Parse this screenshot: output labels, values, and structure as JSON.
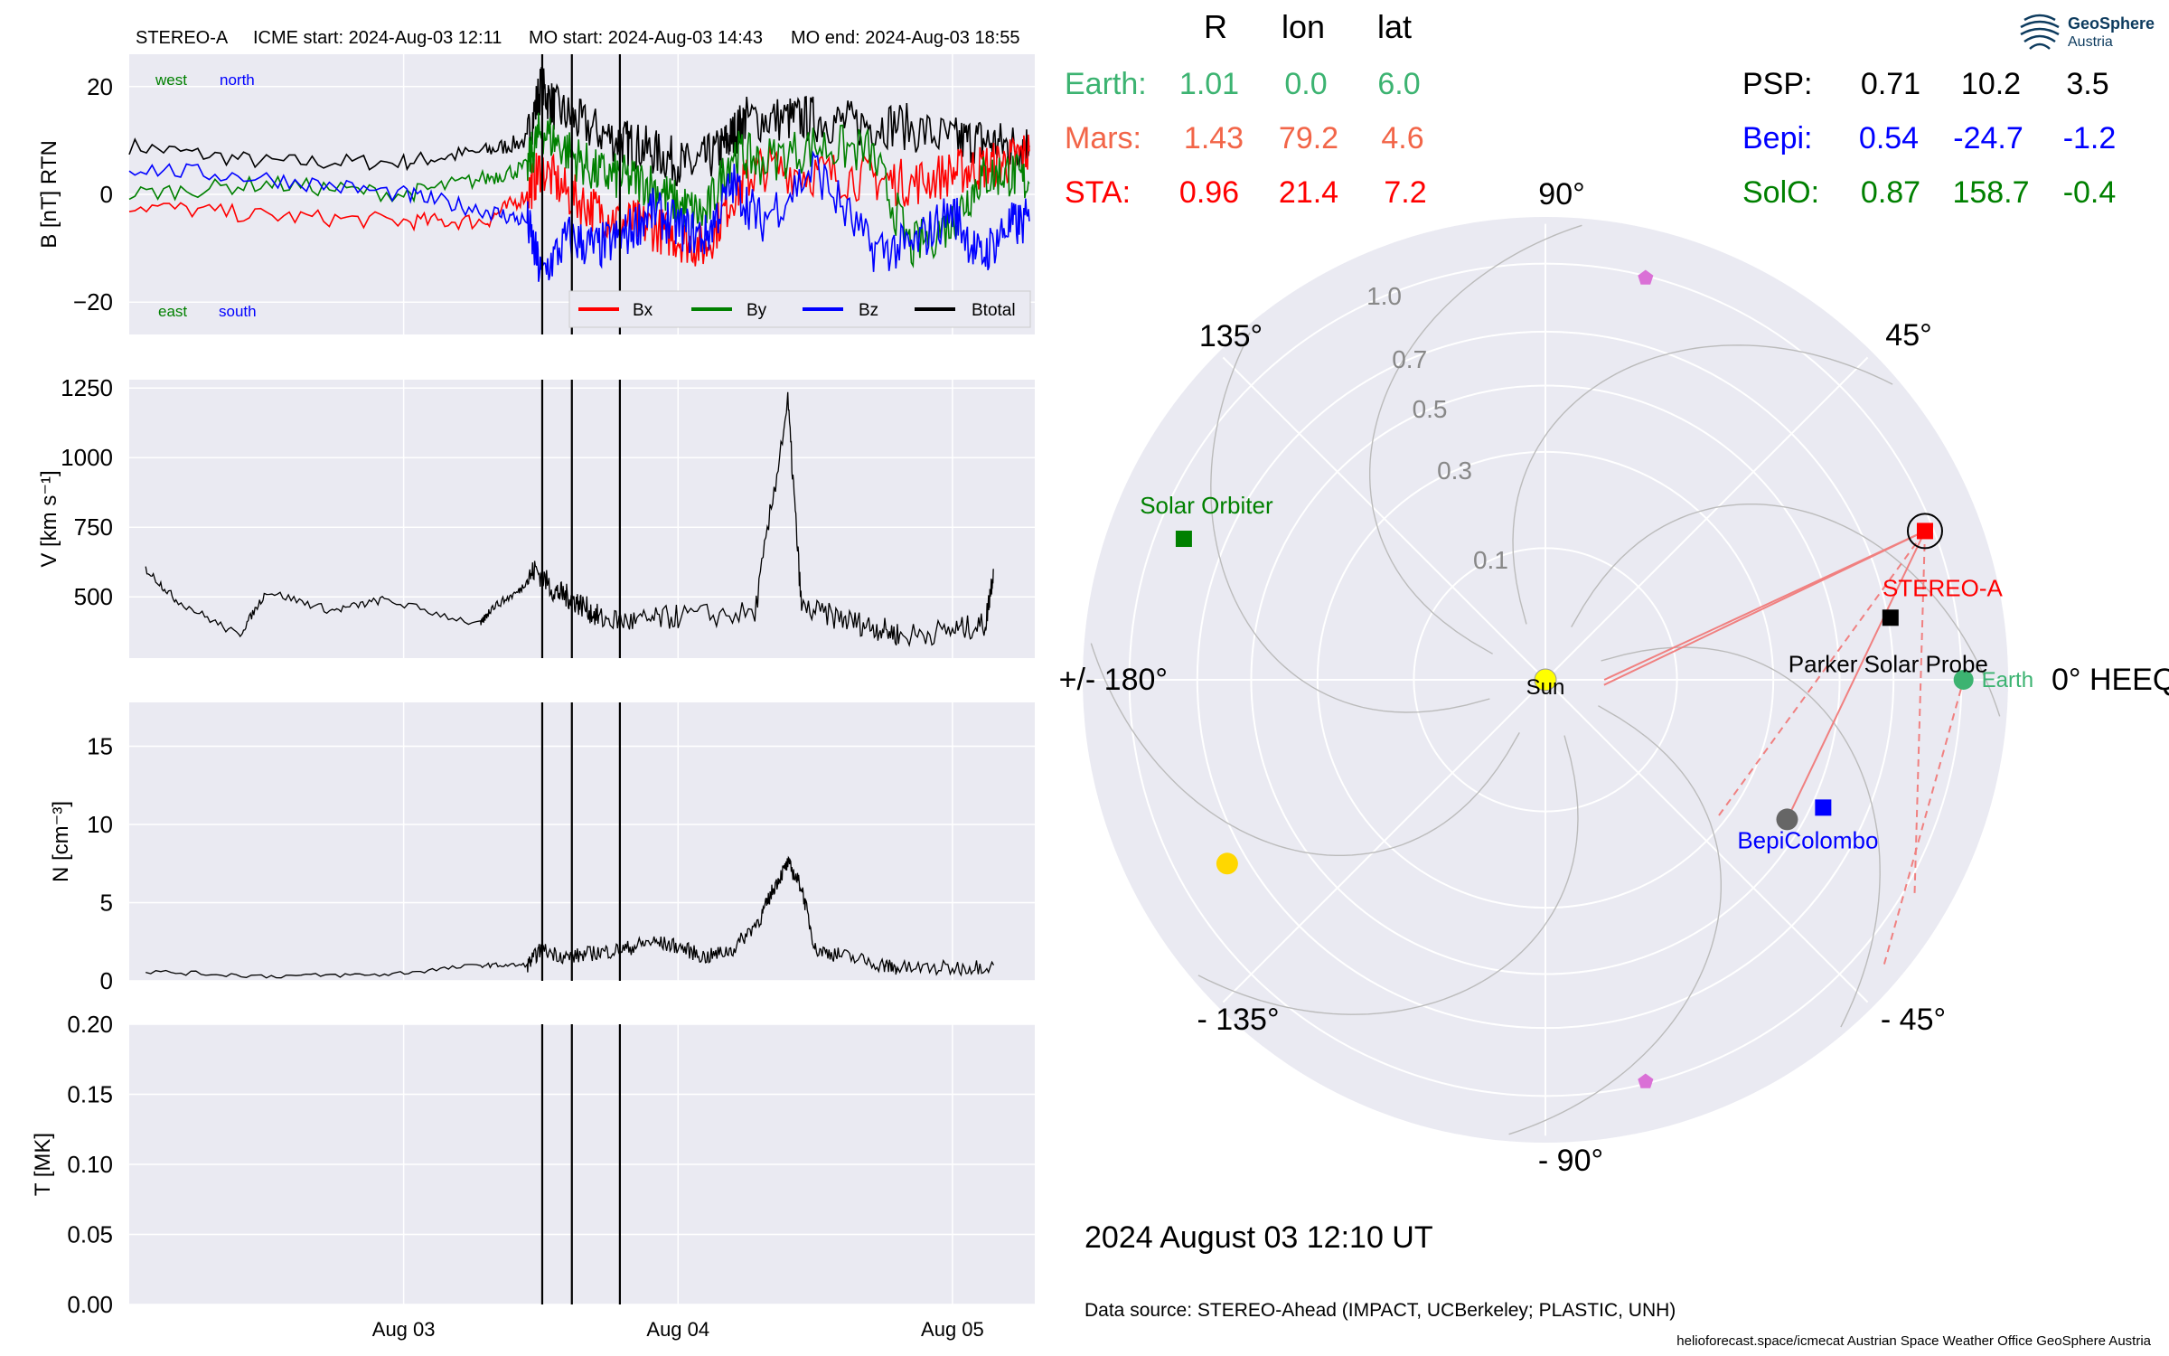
{
  "header": {
    "spacecraft": "STEREO-A",
    "icme_start": "ICME start: 2024-Aug-03 12:11",
    "mo_start": "MO start: 2024-Aug-03 14:43",
    "mo_end": "MO end: 2024-Aug-03 18:55"
  },
  "date_label": "2024 August 03  12:10 UT",
  "data_source": "Data source: STEREO-Ahead (IMPACT, UCBerkeley; PLASTIC, UNH)",
  "footer": "helioforecast.space/icmecat   Austrian Space Weather Office   GeoSphere Austria",
  "logo": {
    "name1": "GeoSphere",
    "name2": "Austria"
  },
  "position_table": {
    "columns": [
      "R",
      "lon",
      "lat"
    ],
    "left": [
      {
        "name": "Earth:",
        "R": "1.01",
        "lon": "0.0",
        "lat": "6.0",
        "color": "#3cb371"
      },
      {
        "name": "Mars:",
        "R": "1.43",
        "lon": "79.2",
        "lat": "4.6",
        "color": "#f26548"
      },
      {
        "name": "STA:",
        "R": "0.96",
        "lon": "21.4",
        "lat": "7.2",
        "color": "#ff0000"
      }
    ],
    "right": [
      {
        "name": "PSP:",
        "R": "0.71",
        "lon": "10.2",
        "lat": "3.5",
        "color": "#000000"
      },
      {
        "name": "Bepi:",
        "R": "0.54",
        "lon": "-24.7",
        "lat": "-1.2",
        "color": "#0000ff"
      },
      {
        "name": "SolO:",
        "R": "0.87",
        "lon": "158.7",
        "lat": "-0.4",
        "color": "#008000"
      }
    ]
  },
  "chart_data": [
    {
      "type": "line",
      "panel": "B",
      "ylabel": "B [nT] RTN",
      "ylim": [
        -26,
        26
      ],
      "yticks": [
        -20,
        0,
        20
      ],
      "x_ticks": [
        "Aug 03",
        "Aug 04",
        "Aug 05"
      ],
      "xlim_days": [
        -1,
        2.3
      ],
      "corner_labels": {
        "west": "west",
        "north": "north",
        "east": "east",
        "south": "south"
      },
      "legend": [
        "Bx",
        "By",
        "Bz",
        "Btotal"
      ],
      "colors": {
        "Bx": "#ff0000",
        "By": "#008000",
        "Bz": "#0000ff",
        "Btotal": "#000000"
      },
      "series": [
        {
          "name": "Btotal",
          "x": [
            -1.0,
            -0.5,
            0.0,
            0.3,
            0.45,
            0.5,
            0.55,
            0.65,
            0.78,
            0.85,
            0.95,
            1.05,
            1.15,
            1.2,
            1.25,
            1.4,
            1.5,
            1.65,
            1.8,
            2.0,
            2.1,
            2.2,
            2.28
          ],
          "y": [
            9,
            6,
            6,
            8,
            10,
            20,
            16,
            13,
            10,
            9,
            7,
            5,
            8,
            11,
            14,
            14,
            14,
            13,
            13,
            10,
            10,
            9,
            9
          ]
        },
        {
          "name": "Bx",
          "x": [
            -1.0,
            -0.5,
            0.0,
            0.3,
            0.45,
            0.5,
            0.6,
            0.7,
            0.8,
            0.9,
            1.0,
            1.1,
            1.2,
            1.3,
            1.5,
            1.7,
            1.85,
            2.0,
            2.1,
            2.2,
            2.28
          ],
          "y": [
            -2,
            -4,
            -5,
            -5,
            0,
            5,
            0,
            -3,
            -5,
            -6,
            -8,
            -10,
            0,
            5,
            4,
            3,
            2,
            4,
            5,
            6,
            8
          ]
        },
        {
          "name": "By",
          "x": [
            -1.0,
            -0.5,
            0.0,
            0.3,
            0.45,
            0.5,
            0.6,
            0.7,
            0.8,
            0.9,
            1.0,
            1.1,
            1.2,
            1.3,
            1.5,
            1.7,
            1.85,
            2.0,
            2.1,
            2.2,
            2.28
          ],
          "y": [
            0,
            2,
            0,
            3,
            5,
            12,
            8,
            4,
            3,
            2,
            -2,
            -4,
            8,
            6,
            9,
            8,
            -10,
            -5,
            3,
            4,
            2
          ]
        },
        {
          "name": "Bz",
          "x": [
            -1.0,
            -0.5,
            0.0,
            0.3,
            0.45,
            0.5,
            0.6,
            0.7,
            0.8,
            0.9,
            1.0,
            1.1,
            1.2,
            1.3,
            1.5,
            1.7,
            1.85,
            2.0,
            2.1,
            2.2,
            2.28
          ],
          "y": [
            5,
            3,
            0,
            -3,
            -5,
            -15,
            -8,
            -10,
            -8,
            -3,
            -6,
            -8,
            2,
            -5,
            5,
            -10,
            -10,
            -3,
            -12,
            -6,
            -5
          ]
        }
      ]
    },
    {
      "type": "line",
      "panel": "V",
      "ylabel": "V [km s⁻¹]",
      "ylim": [
        280,
        1280
      ],
      "yticks": [
        500,
        750,
        1000,
        1250
      ],
      "series": [
        {
          "name": "V",
          "x": [
            -0.94,
            -0.83,
            -0.6,
            -0.5,
            -0.26,
            -0.07,
            0.28,
            0.32,
            0.42,
            0.48,
            0.55,
            0.6,
            0.65,
            0.72,
            0.85,
            1.0,
            1.28,
            1.4,
            1.45,
            1.6,
            1.72,
            1.82,
            2.0,
            2.12,
            2.15
          ],
          "y": [
            600,
            490,
            360,
            520,
            450,
            490,
            400,
            460,
            520,
            600,
            520,
            500,
            470,
            420,
            410,
            430,
            440,
            1200,
            460,
            420,
            390,
            360,
            380,
            400,
            600
          ]
        }
      ]
    },
    {
      "type": "line",
      "panel": "N",
      "ylabel": "N [cm⁻³]",
      "ylim": [
        0,
        17.8
      ],
      "yticks": [
        0,
        5,
        10,
        15
      ],
      "series": [
        {
          "name": "N",
          "x": [
            -0.94,
            -0.5,
            -0.07,
            0.28,
            0.45,
            0.5,
            0.6,
            0.7,
            0.8,
            0.9,
            1.0,
            1.1,
            1.2,
            1.3,
            1.35,
            1.4,
            1.45,
            1.5,
            1.6,
            1.75,
            1.8,
            2.0,
            2.15
          ],
          "y": [
            0.6,
            0.3,
            0.4,
            1.0,
            1.0,
            2.0,
            1.5,
            1.8,
            2.0,
            2.5,
            2.2,
            1.5,
            2.0,
            4.0,
            6.0,
            7.5,
            6.0,
            2.0,
            1.6,
            1.0,
            0.8,
            0.8,
            1.0
          ]
        }
      ]
    },
    {
      "type": "line",
      "panel": "T",
      "ylabel": "T [MK]",
      "ylim": [
        0,
        0.2
      ],
      "yticks": [
        0.0,
        0.05,
        0.1,
        0.15,
        0.2
      ],
      "series": []
    },
    {
      "type": "scatter",
      "panel": "polar",
      "rlabels": [
        "0.1",
        "0.3",
        "0.5",
        "0.7",
        "1.0"
      ],
      "angle_labels": [
        "0° HEEQ",
        "45°",
        "90°",
        "135°",
        "+/- 180°",
        "- 135°",
        "- 90°",
        "- 45°"
      ],
      "bodies": [
        {
          "label": "Sun",
          "r": 0,
          "lon": 0,
          "color": "#ffff00"
        },
        {
          "label": "Earth",
          "r": 1.01,
          "lon": 0.0,
          "color": "#3cb371"
        },
        {
          "label": "STEREO-A",
          "r": 0.96,
          "lon": 21.4,
          "color": "#ff0000"
        },
        {
          "label": "Parker Solar Probe",
          "r": 0.71,
          "lon": 10.2,
          "color": "#000000"
        },
        {
          "label": "BepiColombo",
          "r": 0.54,
          "lon": -24.7,
          "color": "#0000ff"
        },
        {
          "label": "Solar Orbiter",
          "r": 0.87,
          "lon": 158.7,
          "color": "#008000"
        },
        {
          "label": "",
          "r": 0.45,
          "lon": -30,
          "color": "#666666"
        },
        {
          "label": "",
          "r": 0.78,
          "lon": -150,
          "color": "#ffd700"
        },
        {
          "label": "",
          "r": 0.99,
          "lon": 76,
          "color": "#da70d6"
        },
        {
          "label": "",
          "r": 0.99,
          "lon": -76,
          "color": "#da70d6"
        }
      ]
    }
  ]
}
